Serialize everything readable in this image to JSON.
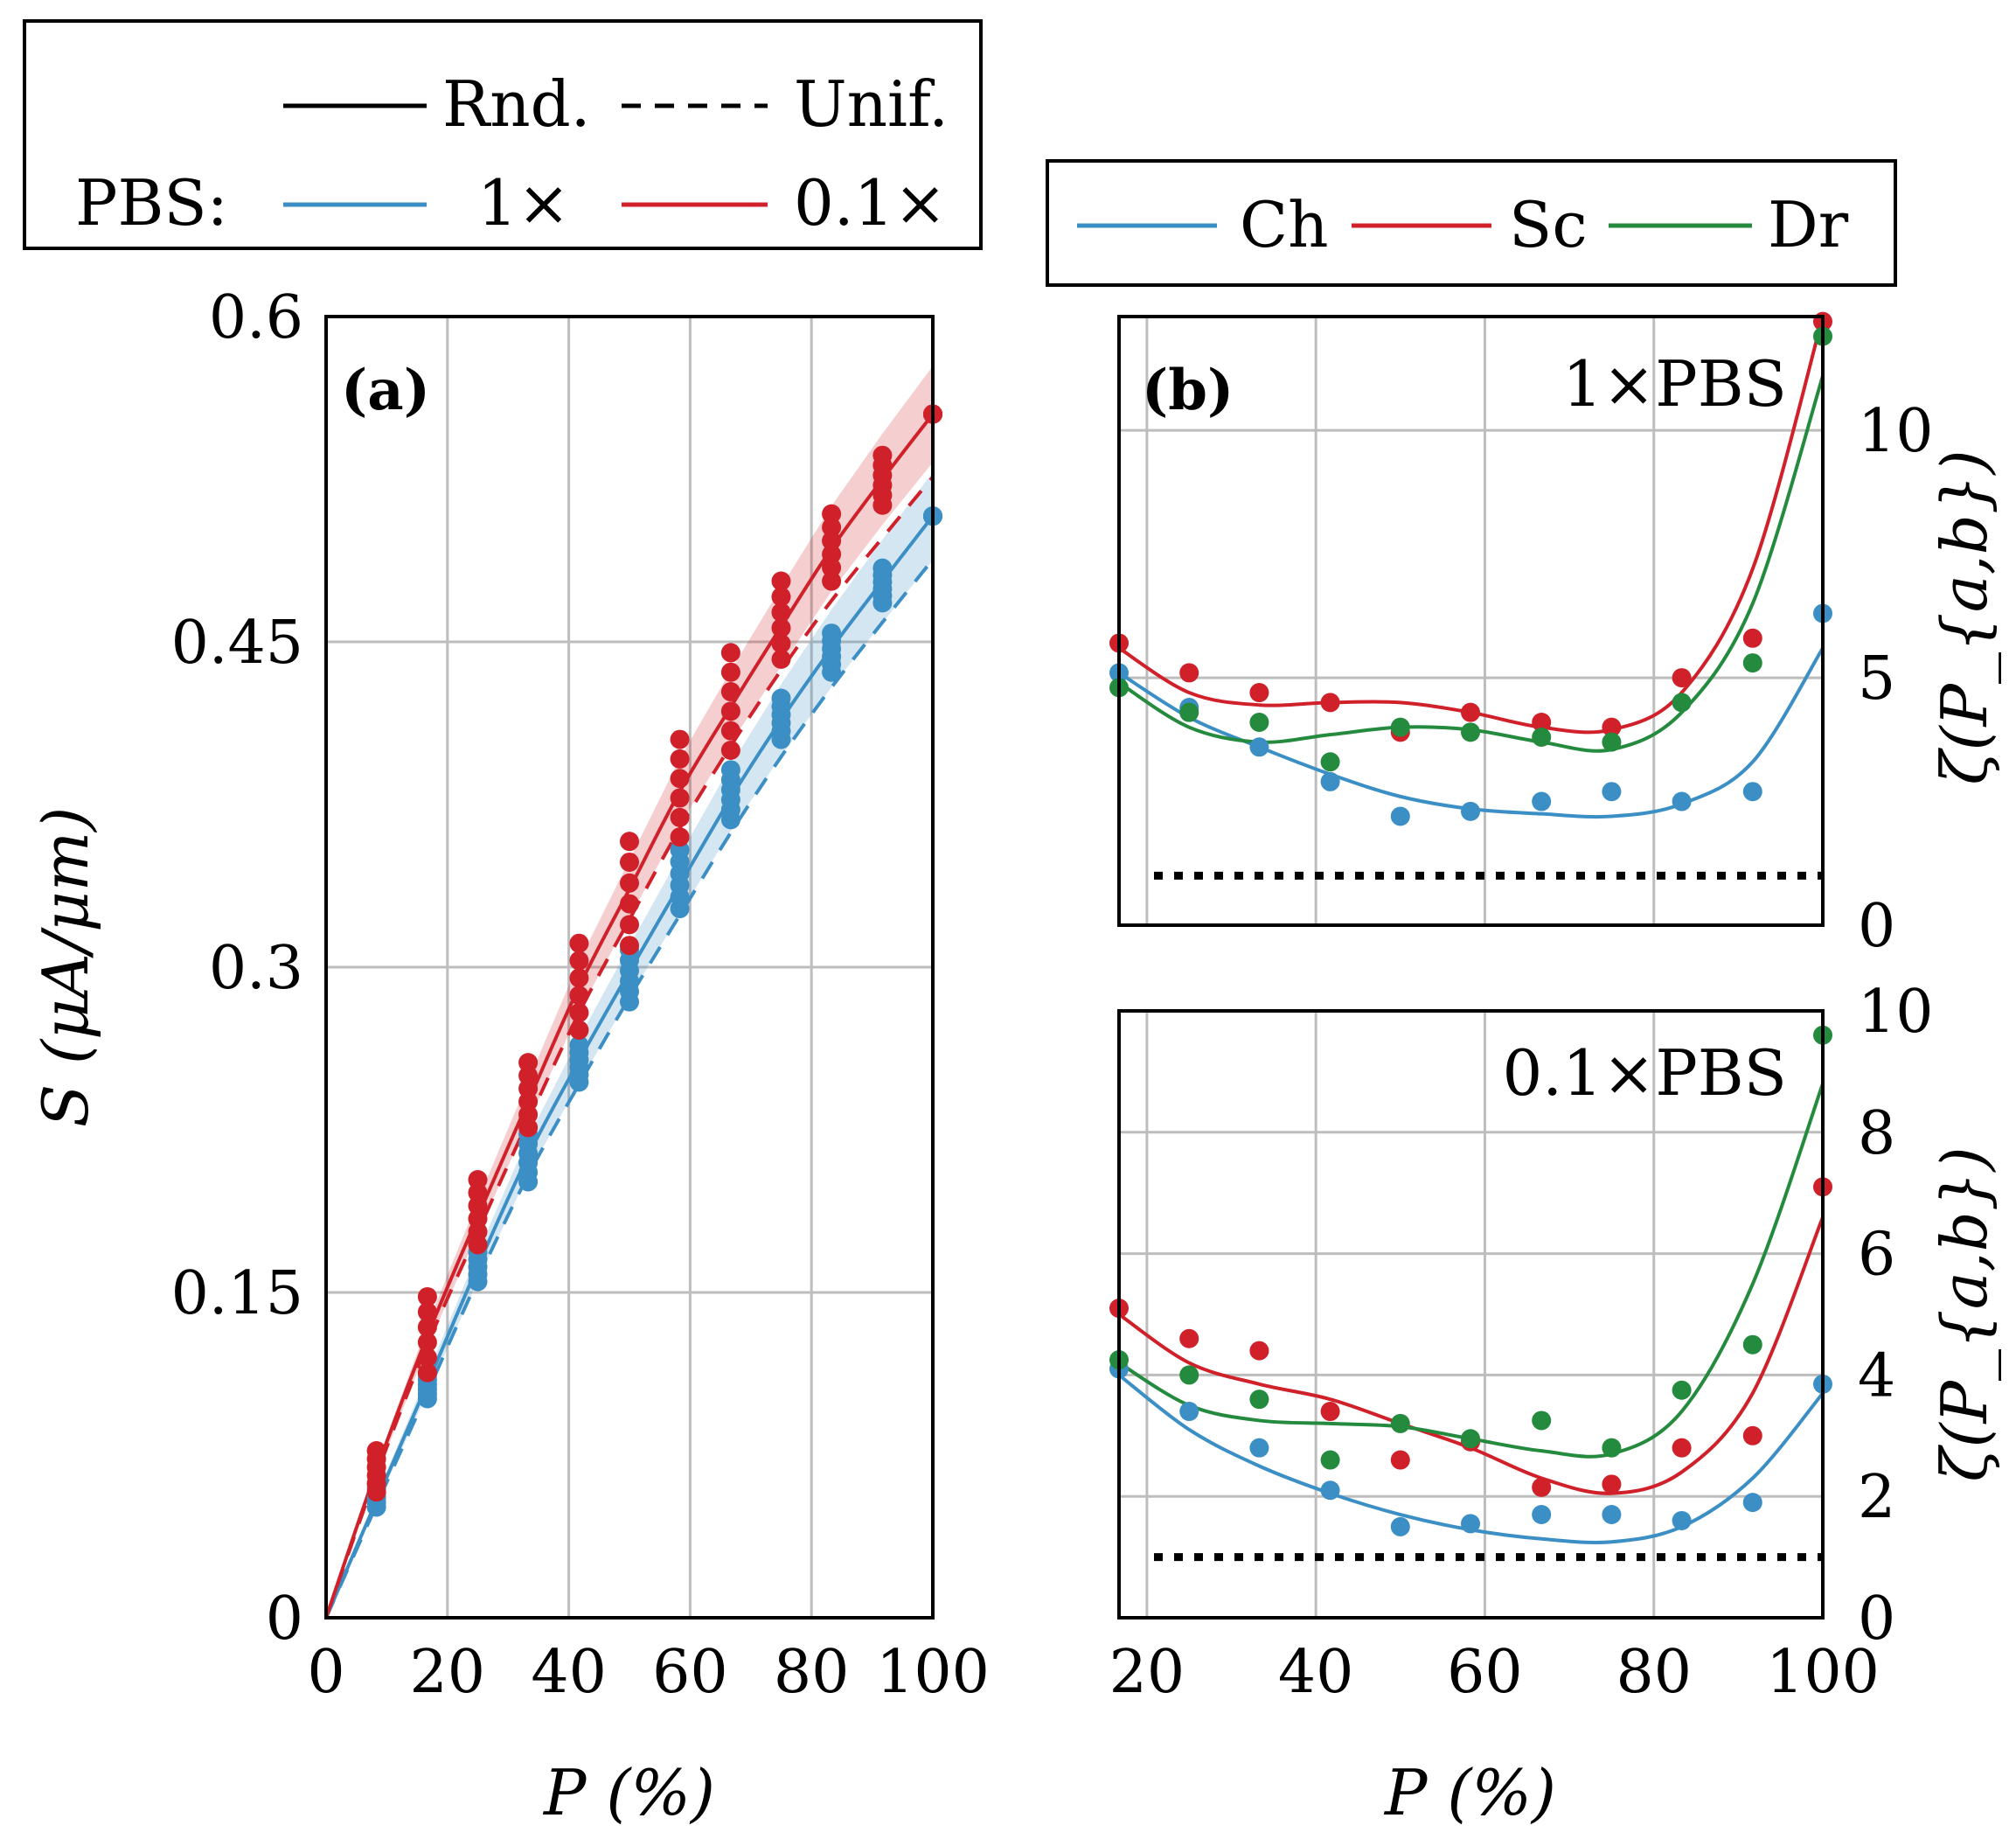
{
  "colors": {
    "blue": "#3b8fc5",
    "red": "#d0202a",
    "green": "#248a3e",
    "black": "#000000"
  },
  "legend_a": {
    "rnd_label": "Rnd.",
    "unif_label": "Unif.",
    "pbs_label": "PBS:",
    "one_label": "1×",
    "tenth_label": "0.1×"
  },
  "legend_b": {
    "ch_label": "Ch",
    "sc_label": "Sc",
    "dr_label": "Dr"
  },
  "chart_data": [
    {
      "panel": "(a)",
      "type": "scatter",
      "xlabel": "P (%)",
      "ylabel": "S (μA/μm)",
      "xlim": [
        0,
        100
      ],
      "ylim": [
        0,
        0.6
      ],
      "xticks": [
        "0",
        "20",
        "40",
        "60",
        "80",
        "100"
      ],
      "yticks": [
        "0",
        "0.15",
        "0.3",
        "0.45",
        "0.6"
      ],
      "grid": true,
      "x": [
        8.3,
        16.7,
        25,
        33.3,
        41.7,
        50,
        58.3,
        66.7,
        75,
        83.3,
        91.7,
        100
      ],
      "series": [
        {
          "name": "1×",
          "line": "Rnd.",
          "color": "blue",
          "x": [
            0,
            8.3,
            16.7,
            25,
            33.3,
            41.7,
            50,
            58.3,
            66.7,
            75,
            83.3,
            91.7,
            100
          ],
          "y": [
            0,
            0.054,
            0.108,
            0.162,
            0.213,
            0.257,
            0.298,
            0.338,
            0.378,
            0.414,
            0.447,
            0.478,
            0.508
          ]
        },
        {
          "name": "0.1×",
          "line": "Rnd.",
          "color": "red",
          "x": [
            0,
            8.3,
            16.7,
            25,
            33.3,
            41.7,
            50,
            58.3,
            66.7,
            75,
            83.3,
            91.7,
            100
          ],
          "y": [
            0,
            0.068,
            0.13,
            0.185,
            0.238,
            0.291,
            0.336,
            0.381,
            0.42,
            0.457,
            0.493,
            0.525,
            0.555
          ]
        },
        {
          "name": "1×",
          "line": "Unif.",
          "color": "blue",
          "dashed": true,
          "x": [
            0,
            8.3,
            16.7,
            25,
            33.3,
            41.7,
            50,
            58.3,
            66.7,
            75,
            83.3,
            91.7,
            100
          ],
          "y": [
            0,
            0.052,
            0.104,
            0.156,
            0.204,
            0.246,
            0.286,
            0.324,
            0.362,
            0.397,
            0.429,
            0.459,
            0.488
          ]
        },
        {
          "name": "0.1×",
          "line": "Unif.",
          "color": "red",
          "dashed": true,
          "x": [
            0,
            8.3,
            16.7,
            25,
            33.3,
            41.7,
            50,
            58.3,
            66.7,
            75,
            83.3,
            91.7,
            100
          ],
          "y": [
            0,
            0.066,
            0.126,
            0.178,
            0.229,
            0.279,
            0.322,
            0.364,
            0.402,
            0.437,
            0.469,
            0.498,
            0.526
          ]
        }
      ],
      "scatter_blue": {
        "x": [
          8.3,
          16.7,
          25,
          33.3,
          41.7,
          50,
          58.3,
          66.7,
          75,
          83.3,
          91.7,
          100
        ],
        "ymin": [
          0.051,
          0.101,
          0.155,
          0.201,
          0.247,
          0.284,
          0.327,
          0.368,
          0.405,
          0.436,
          0.468,
          0.508
        ],
        "ymax": [
          0.062,
          0.112,
          0.172,
          0.223,
          0.264,
          0.308,
          0.354,
          0.391,
          0.424,
          0.454,
          0.484,
          0.508
        ]
      },
      "scatter_red": {
        "x": [
          8.3,
          16.7,
          25,
          33.3,
          41.7,
          50,
          58.3,
          66.7,
          75,
          83.3,
          91.7,
          100
        ],
        "ymin": [
          0.058,
          0.113,
          0.172,
          0.226,
          0.271,
          0.31,
          0.36,
          0.4,
          0.442,
          0.478,
          0.513,
          0.555
        ],
        "ymax": [
          0.077,
          0.148,
          0.202,
          0.256,
          0.311,
          0.358,
          0.405,
          0.445,
          0.478,
          0.509,
          0.536,
          0.555
        ]
      }
    },
    {
      "panel": "(b)",
      "annotation": "1×PBS",
      "type": "scatter",
      "xlim": [
        16.7,
        100
      ],
      "ylim": [
        0,
        12.3
      ],
      "xticks": [
        "20",
        "40",
        "60",
        "80",
        "100"
      ],
      "yticks": [
        "0",
        "5",
        "10"
      ],
      "ylabel": "ζ(P_{a,b})",
      "grid": true,
      "reference_line_y": 1,
      "x": [
        16.7,
        25,
        33.3,
        41.7,
        50,
        58.3,
        66.7,
        75,
        83.3,
        91.7,
        100
      ],
      "points": [
        {
          "name": "Ch",
          "y": [
            5.1,
            4.4,
            3.6,
            2.9,
            2.2,
            2.3,
            2.5,
            2.7,
            2.5,
            2.7,
            6.3
          ]
        },
        {
          "name": "Sc",
          "y": [
            5.7,
            5.1,
            4.7,
            4.5,
            3.9,
            4.3,
            4.1,
            4.0,
            5.0,
            5.8,
            12.2
          ]
        },
        {
          "name": "Dr",
          "y": [
            4.8,
            4.3,
            4.1,
            3.3,
            4.0,
            3.9,
            3.8,
            3.7,
            4.5,
            5.3,
            11.9
          ]
        }
      ],
      "fits": [
        {
          "name": "Ch",
          "y": [
            5.1,
            4.2,
            3.6,
            3.05,
            2.6,
            2.35,
            2.25,
            2.2,
            2.45,
            3.3,
            5.6
          ]
        },
        {
          "name": "Sc",
          "y": [
            5.6,
            4.7,
            4.45,
            4.5,
            4.5,
            4.3,
            4.0,
            3.95,
            4.7,
            7.2,
            12.3
          ]
        },
        {
          "name": "Dr",
          "y": [
            4.9,
            4.0,
            3.7,
            3.85,
            4.0,
            3.95,
            3.7,
            3.55,
            4.3,
            6.5,
            11.1
          ]
        }
      ]
    },
    {
      "panel": "(b)",
      "annotation": "0.1×PBS",
      "type": "scatter",
      "xlabel": "P (%)",
      "xlim": [
        16.7,
        100
      ],
      "ylim": [
        0,
        10
      ],
      "xticks": [
        "20",
        "40",
        "60",
        "80",
        "100"
      ],
      "yticks": [
        "0",
        "2",
        "4",
        "6",
        "8",
        "10"
      ],
      "ylabel": "ζ(P_{a,b})",
      "grid": true,
      "reference_line_y": 1,
      "x": [
        16.7,
        25,
        33.3,
        41.7,
        50,
        58.3,
        66.7,
        75,
        83.3,
        91.7,
        100
      ],
      "points": [
        {
          "name": "Ch",
          "y": [
            4.1,
            3.4,
            2.8,
            2.1,
            1.5,
            1.55,
            1.7,
            1.7,
            1.6,
            1.9,
            3.85
          ]
        },
        {
          "name": "Sc",
          "y": [
            5.1,
            4.6,
            4.4,
            3.4,
            2.6,
            2.9,
            2.15,
            2.2,
            2.8,
            3.0,
            7.1
          ]
        },
        {
          "name": "Dr",
          "y": [
            4.25,
            4.0,
            3.6,
            2.6,
            3.2,
            2.95,
            3.25,
            2.8,
            3.75,
            4.5,
            9.6
          ]
        }
      ],
      "fits": [
        {
          "name": "Ch",
          "y": [
            4.0,
            3.1,
            2.5,
            2.05,
            1.7,
            1.45,
            1.3,
            1.25,
            1.5,
            2.3,
            3.7
          ]
        },
        {
          "name": "Sc",
          "y": [
            5.0,
            4.2,
            3.85,
            3.6,
            3.2,
            2.8,
            2.3,
            2.05,
            2.4,
            3.7,
            6.6
          ]
        },
        {
          "name": "Dr",
          "y": [
            4.2,
            3.5,
            3.25,
            3.2,
            3.15,
            2.95,
            2.75,
            2.7,
            3.4,
            5.5,
            8.8
          ]
        }
      ]
    }
  ]
}
